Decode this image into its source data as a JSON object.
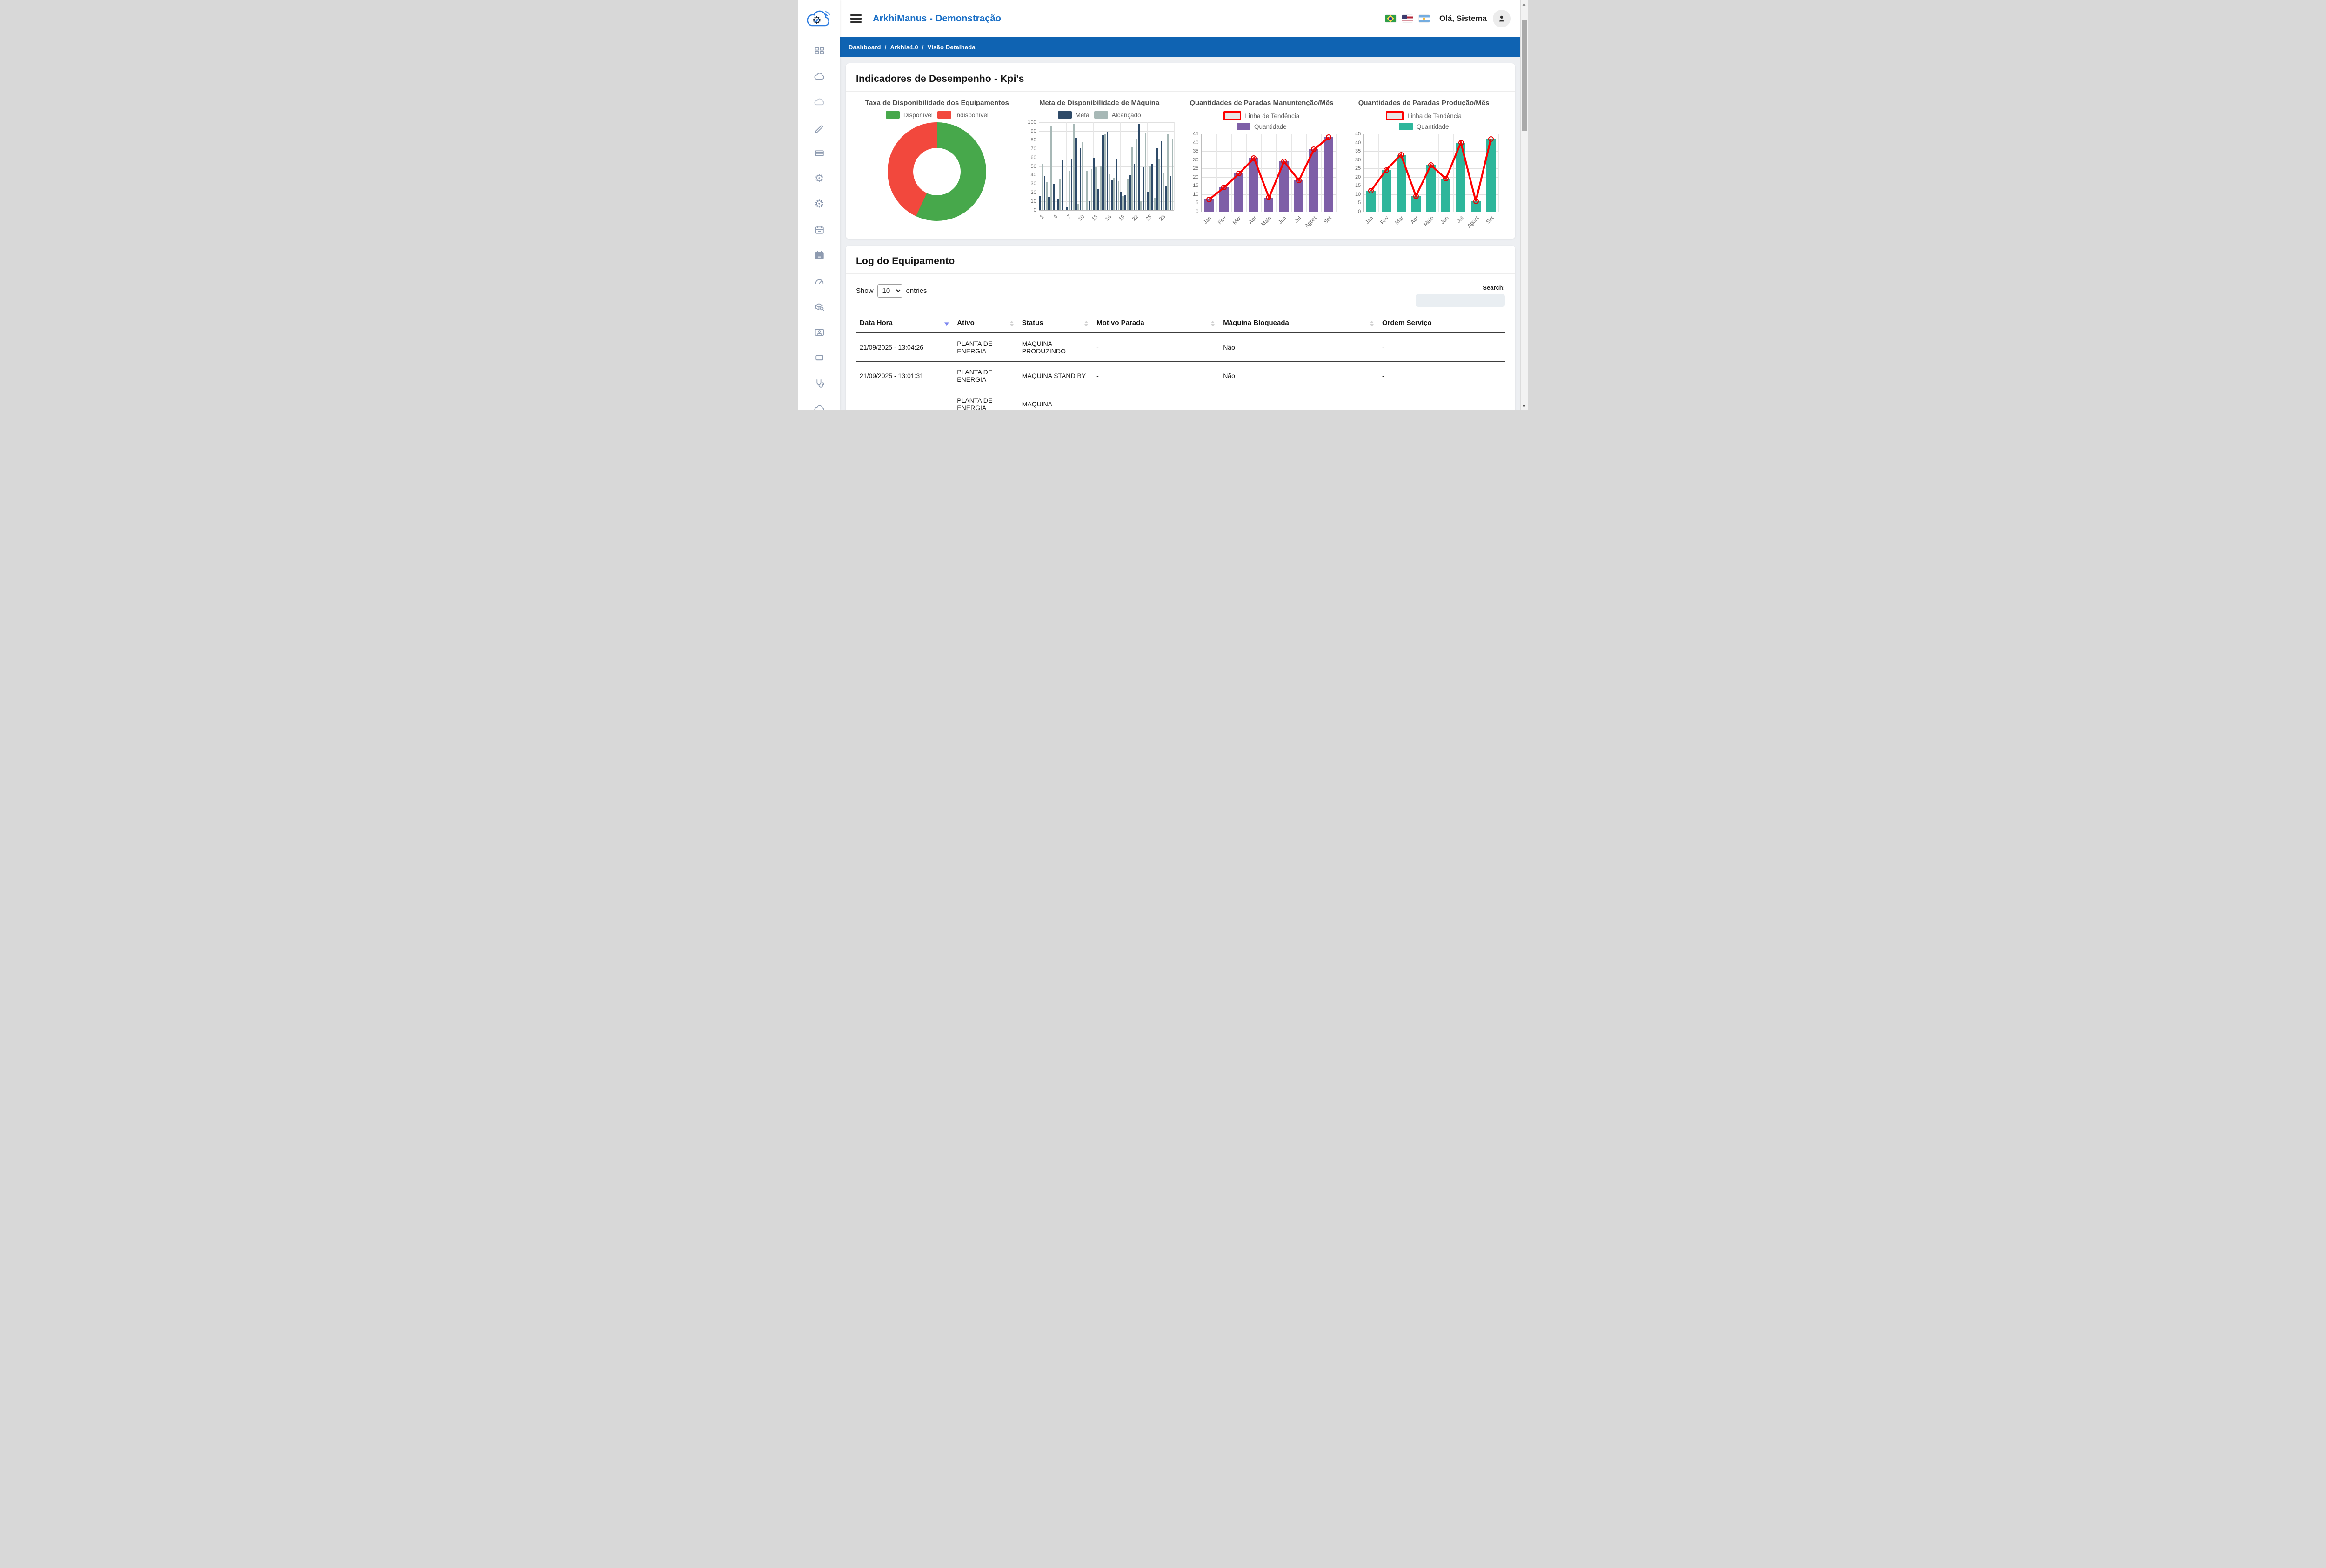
{
  "header": {
    "title": "ArkhiManus - Demonstração",
    "greeting": "Olá, Sistema",
    "flags": [
      "brazil",
      "usa",
      "argentina"
    ]
  },
  "breadcrumb": {
    "items": [
      "Dashboard",
      "Arkhis4.0",
      "Visão Detalhada"
    ],
    "separator": "/"
  },
  "sidebar": {
    "icons": [
      "dashboard-grid",
      "cloud",
      "cloud-light",
      "pencil",
      "table-rows",
      "gear-outline",
      "gear-solid",
      "calendar-outline",
      "calendar-solid",
      "gauge",
      "cube-search",
      "id-card",
      "laptop",
      "stethoscope",
      "cloud-partial"
    ]
  },
  "kpi": {
    "title": "Indicadores de Desempenho - Kpi's"
  },
  "chart_data": [
    {
      "type": "pie",
      "variant": "donut",
      "title": "Taxa de Disponibilidade dos Equipamentos",
      "labels": [
        "Disponível",
        "Indisponível"
      ],
      "values": [
        57,
        43
      ],
      "colors": [
        "#47a84b",
        "#f2483d"
      ],
      "legend_position": "top"
    },
    {
      "type": "bar",
      "title": "Meta de Disponibilidade de Máquina",
      "categories": [
        1,
        2,
        3,
        4,
        5,
        6,
        7,
        8,
        9,
        10,
        11,
        12,
        13,
        14,
        15,
        16,
        17,
        18,
        19,
        20,
        21,
        22,
        23,
        24,
        25,
        26,
        27,
        28,
        29,
        30
      ],
      "xticks": [
        1,
        4,
        7,
        10,
        13,
        16,
        19,
        22,
        25,
        28
      ],
      "series": [
        {
          "name": "Meta",
          "color": "#2e4a68",
          "values": [
            16,
            39,
            15,
            30,
            13,
            57,
            3,
            59,
            82,
            71,
            0,
            10,
            60,
            24,
            85,
            89,
            34,
            59,
            21,
            17,
            40,
            53,
            98,
            49,
            21,
            53,
            71,
            79,
            28,
            39
          ]
        },
        {
          "name": "Alcançado",
          "color": "#a7b8b6",
          "values": [
            53,
            32,
            95,
            0,
            36,
            0,
            45,
            98,
            7,
            77,
            45,
            47,
            49,
            51,
            87,
            41,
            37,
            33,
            16,
            35,
            72,
            81,
            10,
            88,
            50,
            14,
            58,
            42,
            86,
            81
          ]
        }
      ],
      "ylim": [
        0,
        100
      ],
      "ytick_step": 10,
      "grid": true,
      "legend_position": "top"
    },
    {
      "type": "bar",
      "variant": "bar-with-trendline",
      "title": "Quantidades de Paradas Manuntenção/Mês",
      "categories": [
        "Jan",
        "Fev",
        "Mar",
        "Abr",
        "Maio",
        "Jun",
        "Jul",
        "Agost",
        "Set"
      ],
      "series": [
        {
          "name": "Quantidade",
          "color": "#7e5fa7",
          "values": [
            7,
            14,
            22,
            31,
            8,
            29,
            18,
            36,
            43
          ]
        },
        {
          "name": "Linha de Tendência",
          "type": "line",
          "color": "#fe0000",
          "values": [
            7,
            14,
            22,
            31,
            8,
            29,
            18,
            36,
            43
          ]
        }
      ],
      "ylim": [
        0,
        45
      ],
      "ytick_step": 5,
      "grid": true,
      "legend_position": "top"
    },
    {
      "type": "bar",
      "variant": "bar-with-trendline",
      "title": "Quantidades de Paradas Produção/Mês",
      "categories": [
        "Jan",
        "Fev",
        "Mar",
        "Abr",
        "Maio",
        "Jun",
        "Jul",
        "Agost",
        "Set"
      ],
      "series": [
        {
          "name": "Quantidade",
          "color": "#2eb69b",
          "values": [
            12,
            24,
            33,
            9,
            27,
            19,
            40,
            6,
            42
          ]
        },
        {
          "name": "Linha de Tendência",
          "type": "line",
          "color": "#fe0000",
          "values": [
            12,
            24,
            33,
            9,
            27,
            19,
            40,
            6,
            42
          ]
        }
      ],
      "ylim": [
        0,
        45
      ],
      "ytick_step": 5,
      "grid": true,
      "legend_position": "top"
    }
  ],
  "log": {
    "title": "Log do Equipamento",
    "controls": {
      "show_label": "Show",
      "entries_label": "entries",
      "page_size": "10",
      "search_label": "Search:"
    },
    "table": {
      "columns": [
        {
          "label": "Data Hora",
          "sorted": "desc"
        },
        {
          "label": "Ativo",
          "sorted": "none"
        },
        {
          "label": "Status",
          "sorted": "none"
        },
        {
          "label": "Motivo Parada",
          "sorted": "none"
        },
        {
          "label": "Máquina Bloqueada",
          "sorted": "none"
        },
        {
          "label": "Ordem Serviço",
          "sorted": "none"
        }
      ],
      "rows": [
        [
          "21/09/2025 - 13:04:26",
          "PLANTA DE ENERGIA",
          "MAQUINA PRODUZINDO",
          "-",
          "Não",
          "-"
        ],
        [
          "21/09/2025 - 13:01:31",
          "PLANTA DE ENERGIA",
          "MAQUINA STAND BY",
          "-",
          "Não",
          "-"
        ],
        [
          "",
          "PLANTA DE ENERGIA",
          "MAQUINA",
          "",
          "",
          ""
        ]
      ]
    }
  }
}
